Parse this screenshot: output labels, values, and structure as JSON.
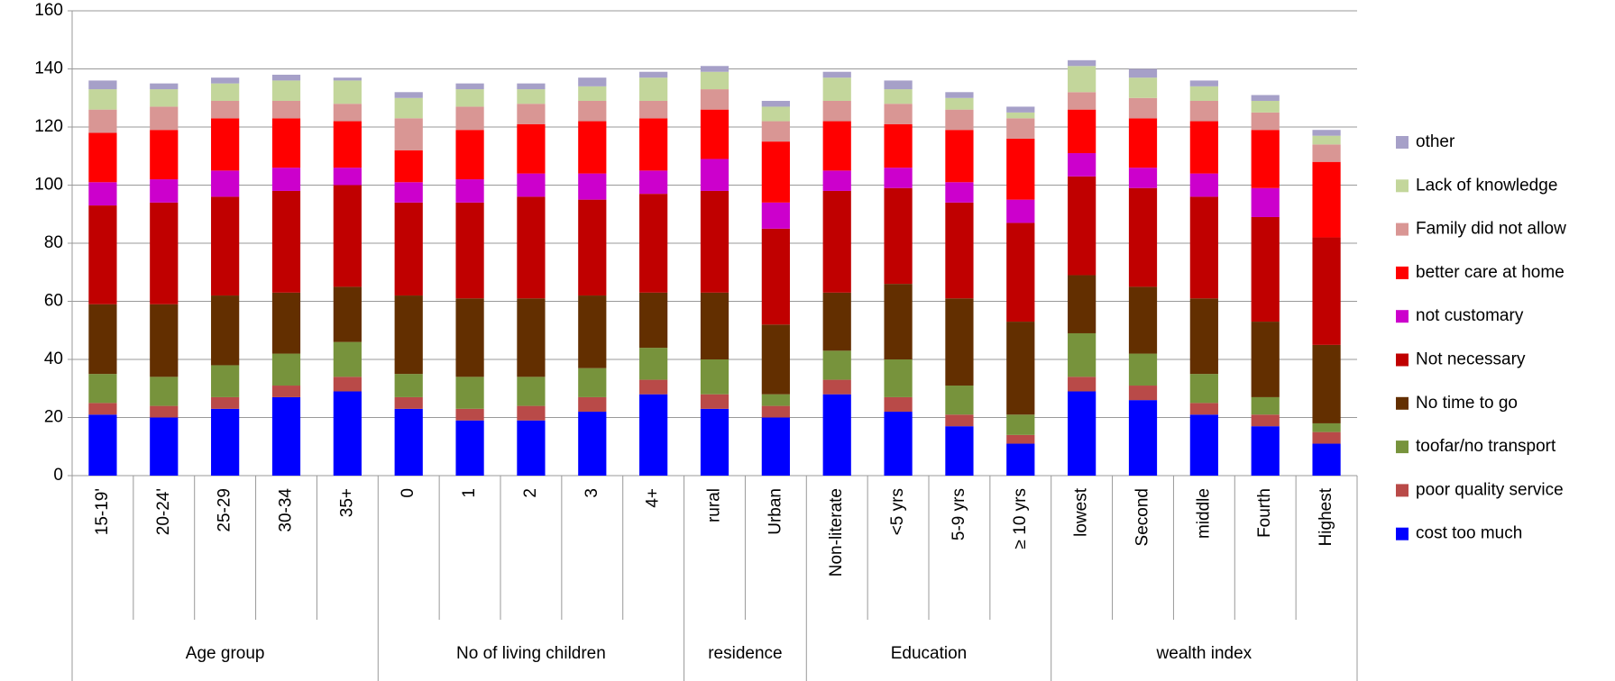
{
  "chart_data": {
    "type": "stacked_bar",
    "groups": [
      {
        "name": "Age group",
        "categories": [
          "15-19'",
          "20-24'",
          "25-29",
          "30-34",
          "35+"
        ]
      },
      {
        "name": "No of living children",
        "categories": [
          "0",
          "1",
          "2",
          "3",
          "4+"
        ]
      },
      {
        "name": "residence",
        "categories": [
          "rural",
          "Urban"
        ]
      },
      {
        "name": "Education",
        "categories": [
          "Non-literate",
          "<5 yrs",
          "5-9 yrs",
          "≥ 10 yrs"
        ]
      },
      {
        "name": "wealth index",
        "categories": [
          "lowest",
          "Second",
          "middle",
          "Fourth",
          "Highest"
        ]
      }
    ],
    "series": [
      {
        "name": "cost too much",
        "color": "#0000ff",
        "values": [
          21,
          20,
          23,
          27,
          29,
          23,
          19,
          19,
          22,
          28,
          23,
          20,
          28,
          22,
          17,
          11,
          29,
          26,
          21,
          17,
          11
        ]
      },
      {
        "name": "poor quality service",
        "color": "#b94a48",
        "values": [
          4,
          4,
          4,
          4,
          5,
          4,
          4,
          5,
          5,
          5,
          5,
          4,
          5,
          5,
          4,
          3,
          5,
          5,
          4,
          4,
          4
        ]
      },
      {
        "name": "toofar/no transport",
        "color": "#77933c",
        "values": [
          10,
          10,
          11,
          11,
          12,
          8,
          11,
          10,
          10,
          11,
          12,
          4,
          10,
          13,
          10,
          7,
          15,
          11,
          10,
          6,
          3
        ]
      },
      {
        "name": "No time to go",
        "color": "#632f00",
        "values": [
          24,
          25,
          24,
          21,
          19,
          27,
          27,
          27,
          25,
          19,
          23,
          24,
          20,
          26,
          30,
          32,
          20,
          23,
          26,
          26,
          27
        ]
      },
      {
        "name": "Not necessary",
        "color": "#c00000",
        "values": [
          34,
          35,
          34,
          35,
          35,
          32,
          33,
          35,
          33,
          34,
          35,
          33,
          35,
          33,
          33,
          34,
          34,
          34,
          35,
          36,
          37
        ]
      },
      {
        "name": "not customary",
        "color": "#cc00cc",
        "values": [
          8,
          8,
          9,
          8,
          6,
          7,
          8,
          8,
          9,
          8,
          11,
          9,
          7,
          7,
          7,
          8,
          8,
          7,
          8,
          10,
          0
        ]
      },
      {
        "name": "better care at home",
        "color": "#ff0000",
        "values": [
          17,
          17,
          18,
          17,
          16,
          11,
          17,
          17,
          18,
          18,
          17,
          21,
          17,
          15,
          18,
          21,
          15,
          17,
          18,
          20,
          26
        ]
      },
      {
        "name": "Family did not allow",
        "color": "#d99694",
        "values": [
          8,
          8,
          6,
          6,
          6,
          11,
          8,
          7,
          7,
          6,
          7,
          7,
          7,
          7,
          7,
          7,
          6,
          7,
          7,
          6,
          6
        ]
      },
      {
        "name": "Lack of knowledge",
        "color": "#c3d69b",
        "values": [
          7,
          6,
          6,
          7,
          8,
          7,
          6,
          5,
          5,
          8,
          6,
          5,
          8,
          5,
          4,
          2,
          9,
          7,
          5,
          4,
          3
        ]
      },
      {
        "name": "other",
        "color": "#a6a0c8",
        "values": [
          3,
          2,
          2,
          2,
          1,
          2,
          2,
          2,
          3,
          2,
          2,
          2,
          2,
          3,
          2,
          2,
          2,
          3,
          2,
          2,
          2
        ]
      }
    ],
    "ylim": [
      0,
      160
    ],
    "yticks": [
      0,
      20,
      40,
      60,
      80,
      100,
      120,
      140,
      160
    ],
    "grid": true
  }
}
